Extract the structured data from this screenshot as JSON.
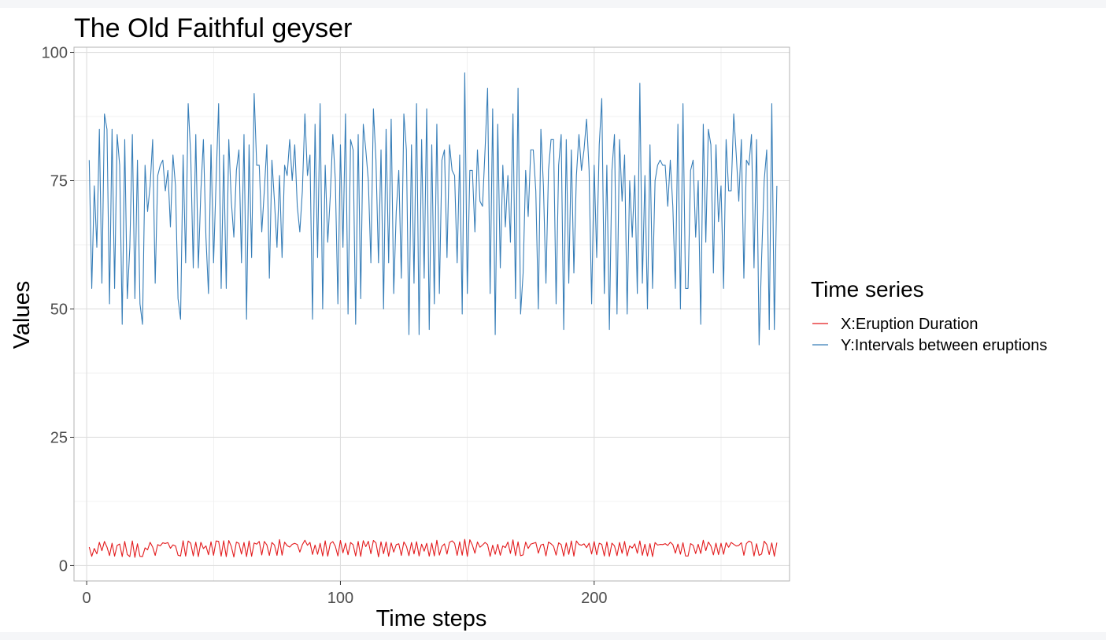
{
  "chart_data": {
    "type": "line",
    "title": "The Old Faithful geyser",
    "xlabel": "Time steps",
    "ylabel": "Values",
    "xlim": [
      -5,
      277
    ],
    "ylim": [
      -3,
      101
    ],
    "x_ticks": [
      0,
      100,
      200
    ],
    "y_ticks": [
      0,
      25,
      50,
      75,
      100
    ],
    "grid": true,
    "legend": {
      "title": "Time series",
      "position": "right"
    },
    "series": [
      {
        "name": "X:Eruption Duration",
        "color": "#e31a1c",
        "values": [
          3.6,
          1.8,
          3.333,
          2.283,
          4.533,
          2.883,
          4.7,
          3.6,
          1.95,
          4.35,
          1.833,
          3.917,
          4.2,
          1.75,
          4.7,
          2.167,
          1.75,
          4.8,
          1.6,
          4.25,
          1.8,
          1.75,
          3.45,
          3.067,
          4.533,
          3.6,
          1.967,
          4.083,
          3.85,
          4.433,
          4.3,
          4.467,
          3.367,
          4.033,
          3.833,
          2.017,
          1.867,
          4.833,
          1.833,
          4.783,
          4.35,
          1.883,
          4.567,
          1.75,
          4.533,
          3.317,
          3.833,
          2.1,
          4.633,
          2,
          4.8,
          4.716,
          1.833,
          4.833,
          1.733,
          4.883,
          3.717,
          1.667,
          4.567,
          4.317,
          2.233,
          4.5,
          1.75,
          4.8,
          1.817,
          4.4,
          4.167,
          4.7,
          2.067,
          4.7,
          4.033,
          1.967,
          4.5,
          4,
          1.983,
          5.067,
          2.017,
          4.567,
          3.883,
          3.6,
          4.133,
          4.333,
          4.1,
          2.633,
          4.067,
          4.933,
          3.95,
          4.517,
          2.167,
          4,
          2.2,
          4.333,
          1.867,
          4.817,
          1.833,
          4.3,
          4.667,
          3.75,
          1.867,
          4.9,
          2.483,
          4.367,
          2.1,
          4.5,
          4.05,
          1.867,
          4.7,
          1.783,
          4.85,
          3.683,
          4.733,
          2.3,
          4.9,
          4.417,
          1.7,
          4.633,
          2.317,
          4.6,
          1.817,
          4.417,
          2.617,
          4.067,
          4.25,
          1.967,
          4.6,
          3.767,
          1.917,
          4.5,
          2.267,
          4.65,
          1.867,
          4.167,
          2.8,
          4.333,
          1.833,
          4.383,
          1.883,
          4.933,
          2.033,
          3.733,
          4.233,
          2.233,
          4.533,
          4.817,
          4.333,
          1.983,
          4.633,
          2.017,
          5.1,
          1.8,
          5.033,
          4,
          2.4,
          4.6,
          3.567,
          4,
          4.5,
          4.083,
          1.8,
          3.967,
          2.2,
          4.15,
          2,
          3.833,
          3.5,
          4.583,
          2.367,
          5,
          1.933,
          4.617,
          1.917,
          2.083,
          4.583,
          3.333,
          4.167,
          4.333,
          4.5,
          2.417,
          4,
          4.167,
          1.883,
          4.583,
          4.25,
          3.767,
          2.033,
          4.433,
          4.083,
          1.833,
          4.417,
          2.183,
          4.8,
          1.833,
          4.8,
          4.1,
          3.966,
          4.233,
          3.5,
          4.366,
          2.25,
          4.667,
          2.1,
          4.35,
          4.133,
          1.867,
          4.6,
          1.783,
          4.367,
          3.85,
          1.933,
          4.5,
          2.383,
          4.7,
          1.867,
          3.833,
          3.417,
          4.233,
          2.4,
          4.8,
          2,
          4.15,
          1.867,
          4.267,
          1.75,
          4.483,
          4,
          4.117,
          4.083,
          4.267,
          3.917,
          4.55,
          4.083,
          2.417,
          4.183,
          2.217,
          4.45,
          1.883,
          1.85,
          4.283,
          3.95,
          2.333,
          4.15,
          2.35,
          4.933,
          2.9,
          4.583,
          3.833,
          2.083,
          4.367,
          2.133,
          4.35,
          2.2,
          4.45,
          3.567,
          4.5,
          4.15,
          3.817,
          3.917,
          4.45,
          2,
          4.283,
          4.767,
          4.533,
          1.85,
          4.25,
          1.983,
          2.25,
          4.75,
          4.117,
          2.15,
          4.417,
          1.817,
          4.467
        ]
      },
      {
        "name": "Y:Intervals between eruptions",
        "color": "#377eb8",
        "values": [
          79,
          54,
          74,
          62,
          85,
          55,
          88,
          85,
          51,
          85,
          54,
          84,
          78,
          47,
          83,
          52,
          62,
          84,
          52,
          79,
          51,
          47,
          78,
          69,
          74,
          83,
          55,
          76,
          78,
          79,
          73,
          77,
          66,
          80,
          74,
          52,
          48,
          80,
          59,
          90,
          80,
          58,
          84,
          58,
          73,
          83,
          64,
          53,
          82,
          59,
          75,
          90,
          54,
          80,
          54,
          83,
          71,
          64,
          77,
          81,
          59,
          84,
          48,
          82,
          60,
          92,
          78,
          78,
          65,
          73,
          82,
          56,
          79,
          71,
          62,
          76,
          60,
          78,
          76,
          83,
          75,
          82,
          70,
          65,
          73,
          88,
          76,
          80,
          48,
          86,
          60,
          90,
          50,
          78,
          63,
          72,
          84,
          75,
          51,
          82,
          62,
          88,
          49,
          83,
          81,
          47,
          84,
          52,
          86,
          81,
          75,
          59,
          89,
          79,
          59,
          81,
          50,
          85,
          59,
          87,
          53,
          69,
          77,
          56,
          88,
          81,
          45,
          82,
          55,
          90,
          45,
          83,
          56,
          89,
          46,
          82,
          51,
          86,
          53,
          79,
          81,
          60,
          82,
          77,
          76,
          59,
          80,
          49,
          96,
          53,
          77,
          77,
          65,
          81,
          71,
          70,
          81,
          93,
          53,
          89,
          45,
          86,
          58,
          78,
          66,
          76,
          63,
          88,
          52,
          93,
          49,
          57,
          77,
          68,
          81,
          81,
          73,
          50,
          85,
          74,
          55,
          77,
          83,
          83,
          51,
          78,
          84,
          46,
          83,
          55,
          81,
          57,
          76,
          84,
          77,
          81,
          87,
          77,
          51,
          78,
          60,
          82,
          91,
          53,
          78,
          46,
          77,
          84,
          49,
          83,
          71,
          80,
          49,
          75,
          64,
          76,
          53,
          94,
          55,
          76,
          50,
          82,
          54,
          75,
          78,
          79,
          78,
          78,
          70,
          79,
          70,
          54,
          86,
          50,
          90,
          54,
          54,
          77,
          79,
          64,
          75,
          47,
          86,
          63,
          85,
          82,
          57,
          82,
          67,
          74,
          54,
          83,
          73,
          73,
          88,
          80,
          71,
          83,
          56,
          79,
          78,
          84,
          58,
          83,
          43,
          60,
          75,
          81,
          46,
          90,
          46,
          74
        ]
      }
    ]
  }
}
